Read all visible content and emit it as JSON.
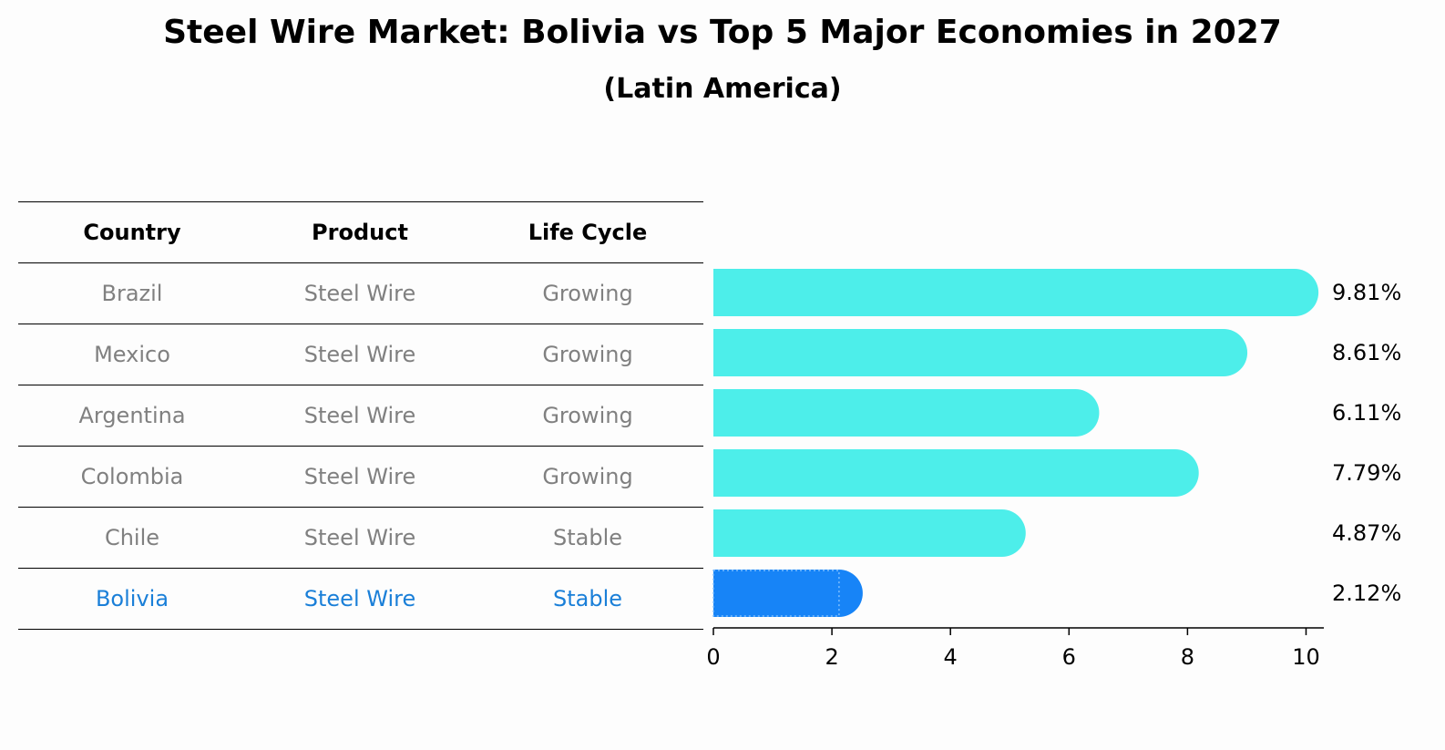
{
  "title": "Steel Wire Market: Bolivia vs Top 5 Major Economies in 2027",
  "subtitle": "(Latin America)",
  "table": {
    "headers": [
      "Country",
      "Product",
      "Life Cycle"
    ],
    "rows": [
      [
        "Brazil",
        "Steel Wire",
        "Growing"
      ],
      [
        "Mexico",
        "Steel Wire",
        "Growing"
      ],
      [
        "Argentina",
        "Steel Wire",
        "Growing"
      ],
      [
        "Colombia",
        "Steel Wire",
        "Growing"
      ],
      [
        "Chile",
        "Steel Wire",
        "Stable"
      ],
      [
        "Bolivia",
        "Steel Wire",
        "Stable"
      ]
    ],
    "highlight_row": 5,
    "highlight_color": "#1a7fd8"
  },
  "chart_data": {
    "type": "bar",
    "orientation": "horizontal",
    "categories": [
      "Brazil",
      "Mexico",
      "Argentina",
      "Colombia",
      "Chile",
      "Bolivia"
    ],
    "values": [
      9.81,
      8.61,
      6.11,
      7.79,
      4.87,
      2.12
    ],
    "value_labels": [
      "9.81%",
      "8.61%",
      "6.11%",
      "7.79%",
      "4.87%",
      "2.12%"
    ],
    "xlim": [
      0,
      10.3
    ],
    "xticks": [
      0,
      2,
      4,
      6,
      8,
      10
    ],
    "colors": {
      "default": "#4deeea",
      "highlight": "#1784f7"
    },
    "highlight_index": 5
  }
}
